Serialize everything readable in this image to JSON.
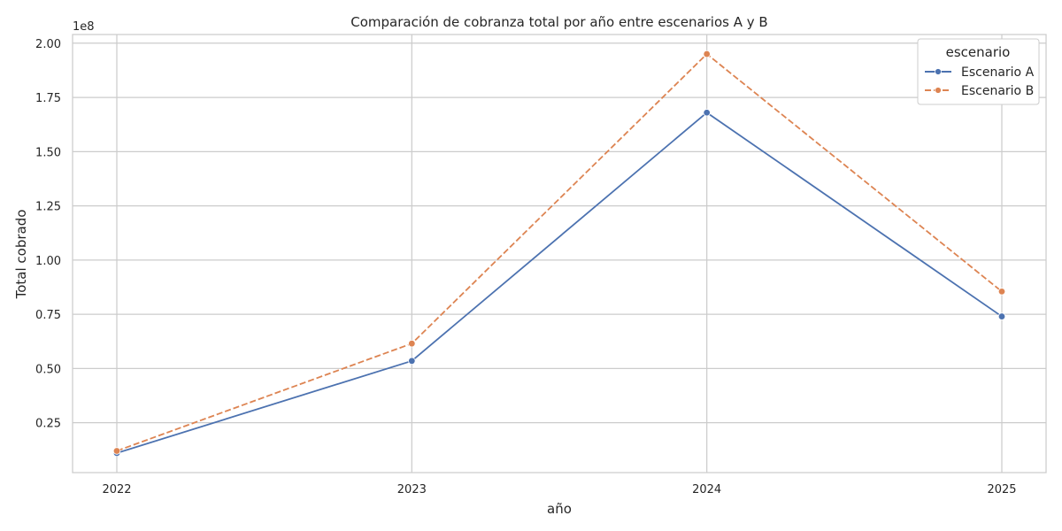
{
  "chart_data": {
    "type": "line",
    "title": "Comparación de cobranza total por año entre escenarios A y B",
    "xlabel": "año",
    "ylabel": "Total cobrado",
    "y_offset_label": "1e8",
    "x": [
      "2022",
      "2023",
      "2024",
      "2025"
    ],
    "yticks": [
      0.25,
      0.5,
      0.75,
      1.0,
      1.25,
      1.5,
      1.75,
      2.0
    ],
    "ytick_labels": [
      "0.25",
      "0.50",
      "0.75",
      "1.00",
      "1.25",
      "1.50",
      "1.75",
      "2.00"
    ],
    "ylim": [
      0.02,
      2.04
    ],
    "y_unit_multiplier": 100000000,
    "grid": true,
    "legend": {
      "title": "escenario",
      "placement": "top-right"
    },
    "series": [
      {
        "name": "Escenario A",
        "values": [
          0.11,
          0.535,
          1.68,
          0.74
        ],
        "color": "#4c72b0",
        "style": "solid"
      },
      {
        "name": "Escenario B",
        "values": [
          0.12,
          0.615,
          1.95,
          0.855
        ],
        "color": "#dd8452",
        "style": "dashed"
      }
    ]
  }
}
